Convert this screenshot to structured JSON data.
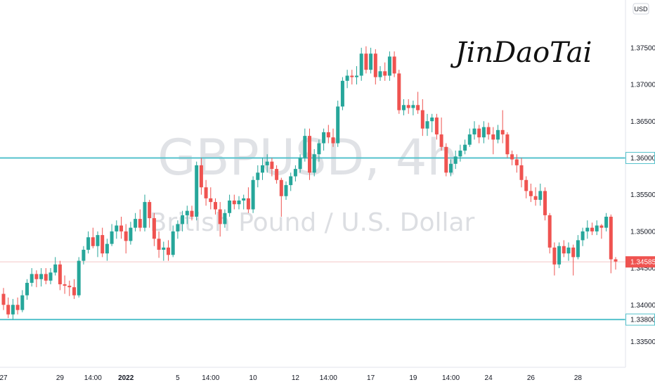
{
  "chart_data": {
    "type": "candlestick",
    "symbol": "GBPUSD",
    "interval": "4h",
    "watermark_title": "GBPUSD, 4h",
    "watermark_subtitle": "British Pound / U.S. Dollar",
    "currency": "USD",
    "signature": "JinDaoTai",
    "ylim": [
      1.3315,
      1.3815
    ],
    "y_ticks": [
      1.335,
      1.34,
      1.345,
      1.35,
      1.355,
      1.36,
      1.365,
      1.37,
      1.375
    ],
    "y_tick_labels": [
      "1.33500",
      "1.34000",
      "1.34500",
      "1.35000",
      "1.35500",
      "1.36000",
      "1.36500",
      "1.37000",
      "1.37500"
    ],
    "x_ticks": [
      {
        "label": "27",
        "index": 0
      },
      {
        "label": "29",
        "index": 12
      },
      {
        "label": "14:00",
        "index": 19
      },
      {
        "label": "2022",
        "index": 26
      },
      {
        "label": "5",
        "index": 37
      },
      {
        "label": "14:00",
        "index": 44
      },
      {
        "label": "10",
        "index": 53
      },
      {
        "label": "12",
        "index": 62
      },
      {
        "label": "14:00",
        "index": 69
      },
      {
        "label": "17",
        "index": 78
      },
      {
        "label": "19",
        "index": 87
      },
      {
        "label": "14:00",
        "index": 95
      },
      {
        "label": "24",
        "index": 103
      },
      {
        "label": "26",
        "index": 112
      },
      {
        "label": "28",
        "index": 122
      }
    ],
    "levels": [
      {
        "value": 1.36,
        "label": "1.36000",
        "color": "#55c2cc"
      },
      {
        "value": 1.338,
        "label": "1.33800",
        "color": "#55c2cc"
      }
    ],
    "last_price": {
      "value": 1.34585,
      "label": "1.34585",
      "color": "#ef5350"
    },
    "up_color": "#26a69a",
    "down_color": "#ef5350",
    "candles": [
      [
        1.3415,
        1.3423,
        1.3393,
        1.34
      ],
      [
        1.34,
        1.341,
        1.3382,
        1.3387
      ],
      [
        1.3387,
        1.3408,
        1.338,
        1.34
      ],
      [
        1.34,
        1.341,
        1.3387,
        1.3393
      ],
      [
        1.3393,
        1.342,
        1.339,
        1.3413
      ],
      [
        1.3413,
        1.3435,
        1.3407,
        1.343
      ],
      [
        1.343,
        1.345,
        1.3425,
        1.3442
      ],
      [
        1.3442,
        1.3447,
        1.3424,
        1.3435
      ],
      [
        1.3435,
        1.345,
        1.3425,
        1.3442
      ],
      [
        1.3442,
        1.345,
        1.3428,
        1.3433
      ],
      [
        1.3433,
        1.345,
        1.3428,
        1.3444
      ],
      [
        1.3444,
        1.3465,
        1.344,
        1.3455
      ],
      [
        1.3455,
        1.346,
        1.342,
        1.3428
      ],
      [
        1.3428,
        1.344,
        1.3415,
        1.3426
      ],
      [
        1.3426,
        1.3433,
        1.3412,
        1.3424
      ],
      [
        1.3424,
        1.3435,
        1.3408,
        1.3413
      ],
      [
        1.3413,
        1.3465,
        1.341,
        1.346
      ],
      [
        1.346,
        1.348,
        1.3455,
        1.3475
      ],
      [
        1.3475,
        1.35,
        1.347,
        1.3492
      ],
      [
        1.3492,
        1.3505,
        1.3477,
        1.348
      ],
      [
        1.348,
        1.35,
        1.3465,
        1.3495
      ],
      [
        1.3495,
        1.3505,
        1.3465,
        1.347
      ],
      [
        1.347,
        1.349,
        1.346,
        1.3483
      ],
      [
        1.3483,
        1.351,
        1.348,
        1.35
      ],
      [
        1.35,
        1.3515,
        1.349,
        1.3508
      ],
      [
        1.3508,
        1.352,
        1.349,
        1.35
      ],
      [
        1.35,
        1.351,
        1.347,
        1.3487
      ],
      [
        1.3487,
        1.3513,
        1.3482,
        1.3505
      ],
      [
        1.3505,
        1.3525,
        1.35,
        1.3517
      ],
      [
        1.3517,
        1.353,
        1.35,
        1.3505
      ],
      [
        1.3505,
        1.355,
        1.35,
        1.354
      ],
      [
        1.354,
        1.3543,
        1.3505,
        1.3518
      ],
      [
        1.3518,
        1.3525,
        1.348,
        1.349
      ],
      [
        1.349,
        1.35,
        1.3464,
        1.3475
      ],
      [
        1.3475,
        1.3486,
        1.346,
        1.3478
      ],
      [
        1.3478,
        1.3488,
        1.346,
        1.3468
      ],
      [
        1.3468,
        1.3508,
        1.3465,
        1.35
      ],
      [
        1.35,
        1.3515,
        1.349,
        1.351
      ],
      [
        1.351,
        1.3528,
        1.35,
        1.3522
      ],
      [
        1.3522,
        1.3535,
        1.351,
        1.3528
      ],
      [
        1.3528,
        1.3535,
        1.3515,
        1.352
      ],
      [
        1.352,
        1.3595,
        1.3515,
        1.359
      ],
      [
        1.359,
        1.36,
        1.355,
        1.356
      ],
      [
        1.356,
        1.357,
        1.3535,
        1.3545
      ],
      [
        1.3545,
        1.356,
        1.353,
        1.354
      ],
      [
        1.354,
        1.3545,
        1.3523,
        1.353
      ],
      [
        1.353,
        1.354,
        1.3493,
        1.351
      ],
      [
        1.351,
        1.353,
        1.3505,
        1.3525
      ],
      [
        1.3525,
        1.355,
        1.352,
        1.3542
      ],
      [
        1.3542,
        1.355,
        1.353,
        1.3537
      ],
      [
        1.3537,
        1.3548,
        1.353,
        1.3542
      ],
      [
        1.3542,
        1.355,
        1.353,
        1.3545
      ],
      [
        1.3545,
        1.356,
        1.3525,
        1.353
      ],
      [
        1.353,
        1.3575,
        1.3525,
        1.357
      ],
      [
        1.357,
        1.359,
        1.356,
        1.358
      ],
      [
        1.358,
        1.36,
        1.357,
        1.359
      ],
      [
        1.359,
        1.3605,
        1.358,
        1.3595
      ],
      [
        1.3595,
        1.36,
        1.3575,
        1.3585
      ],
      [
        1.3585,
        1.359,
        1.3565,
        1.357
      ],
      [
        1.357,
        1.3573,
        1.352,
        1.3548
      ],
      [
        1.3548,
        1.3568,
        1.3543,
        1.3563
      ],
      [
        1.3563,
        1.358,
        1.3555,
        1.3575
      ],
      [
        1.3575,
        1.359,
        1.3568,
        1.3585
      ],
      [
        1.3585,
        1.3605,
        1.358,
        1.36
      ],
      [
        1.36,
        1.364,
        1.3595,
        1.363
      ],
      [
        1.363,
        1.364,
        1.357,
        1.358
      ],
      [
        1.358,
        1.3612,
        1.3575,
        1.3605
      ],
      [
        1.3605,
        1.3625,
        1.3595,
        1.362
      ],
      [
        1.362,
        1.364,
        1.361,
        1.3635
      ],
      [
        1.3635,
        1.3645,
        1.362,
        1.3628
      ],
      [
        1.3628,
        1.364,
        1.3615,
        1.362
      ],
      [
        1.362,
        1.3678,
        1.3615,
        1.367
      ],
      [
        1.367,
        1.371,
        1.3665,
        1.3705
      ],
      [
        1.3705,
        1.372,
        1.3695,
        1.3712
      ],
      [
        1.3712,
        1.372,
        1.37,
        1.371
      ],
      [
        1.371,
        1.3725,
        1.37,
        1.3712
      ],
      [
        1.3712,
        1.375,
        1.3705,
        1.3742
      ],
      [
        1.3742,
        1.3752,
        1.3715,
        1.372
      ],
      [
        1.372,
        1.375,
        1.3715,
        1.3742
      ],
      [
        1.3742,
        1.3748,
        1.37,
        1.371
      ],
      [
        1.371,
        1.3725,
        1.3705,
        1.3718
      ],
      [
        1.3718,
        1.373,
        1.3705,
        1.3712
      ],
      [
        1.3712,
        1.3745,
        1.3705,
        1.3738
      ],
      [
        1.3738,
        1.3745,
        1.371,
        1.3715
      ],
      [
        1.3715,
        1.372,
        1.366,
        1.3665
      ],
      [
        1.3665,
        1.368,
        1.3658,
        1.3672
      ],
      [
        1.3672,
        1.368,
        1.366,
        1.3668
      ],
      [
        1.3668,
        1.3678,
        1.3658,
        1.3672
      ],
      [
        1.3672,
        1.369,
        1.366,
        1.3665
      ],
      [
        1.3665,
        1.368,
        1.363,
        1.364
      ],
      [
        1.364,
        1.366,
        1.363,
        1.365
      ],
      [
        1.365,
        1.366,
        1.3635,
        1.3655
      ],
      [
        1.3655,
        1.366,
        1.3625,
        1.3632
      ],
      [
        1.3632,
        1.3655,
        1.361,
        1.3615
      ],
      [
        1.3615,
        1.362,
        1.3575,
        1.358
      ],
      [
        1.358,
        1.3598,
        1.3575,
        1.3592
      ],
      [
        1.3592,
        1.361,
        1.3585,
        1.3602
      ],
      [
        1.3602,
        1.3618,
        1.3595,
        1.361
      ],
      [
        1.361,
        1.3625,
        1.3605,
        1.3618
      ],
      [
        1.3618,
        1.364,
        1.3615,
        1.3632
      ],
      [
        1.3632,
        1.365,
        1.3625,
        1.364
      ],
      [
        1.364,
        1.3645,
        1.362,
        1.3628
      ],
      [
        1.3628,
        1.365,
        1.362,
        1.3642
      ],
      [
        1.3642,
        1.3648,
        1.3625,
        1.3632
      ],
      [
        1.3632,
        1.3642,
        1.3605,
        1.3625
      ],
      [
        1.3625,
        1.3645,
        1.362,
        1.3638
      ],
      [
        1.3638,
        1.3665,
        1.362,
        1.3632
      ],
      [
        1.3632,
        1.3635,
        1.36,
        1.3605
      ],
      [
        1.3605,
        1.361,
        1.359,
        1.3598
      ],
      [
        1.3598,
        1.3605,
        1.358,
        1.359
      ],
      [
        1.359,
        1.36,
        1.356,
        1.357
      ],
      [
        1.357,
        1.3575,
        1.3545,
        1.3555
      ],
      [
        1.3555,
        1.3565,
        1.354,
        1.3548
      ],
      [
        1.3548,
        1.356,
        1.3535,
        1.3543
      ],
      [
        1.3543,
        1.3565,
        1.3535,
        1.3555
      ],
      [
        1.3555,
        1.356,
        1.3515,
        1.3522
      ],
      [
        1.3522,
        1.3525,
        1.347,
        1.3478
      ],
      [
        1.3478,
        1.3485,
        1.344,
        1.3455
      ],
      [
        1.3455,
        1.3485,
        1.345,
        1.348
      ],
      [
        1.348,
        1.3488,
        1.3465,
        1.347
      ],
      [
        1.347,
        1.3485,
        1.346,
        1.3478
      ],
      [
        1.3478,
        1.3482,
        1.344,
        1.3465
      ],
      [
        1.3465,
        1.3495,
        1.3462,
        1.3488
      ],
      [
        1.3488,
        1.3505,
        1.348,
        1.35
      ],
      [
        1.35,
        1.3515,
        1.349,
        1.3505
      ],
      [
        1.3505,
        1.3512,
        1.3495,
        1.35
      ],
      [
        1.35,
        1.3515,
        1.3495,
        1.3508
      ],
      [
        1.3508,
        1.351,
        1.349,
        1.3505
      ],
      [
        1.3505,
        1.3525,
        1.35,
        1.352
      ],
      [
        1.352,
        1.3523,
        1.3443,
        1.3462
      ],
      [
        1.3462,
        1.3465,
        1.3448,
        1.3459
      ]
    ]
  }
}
